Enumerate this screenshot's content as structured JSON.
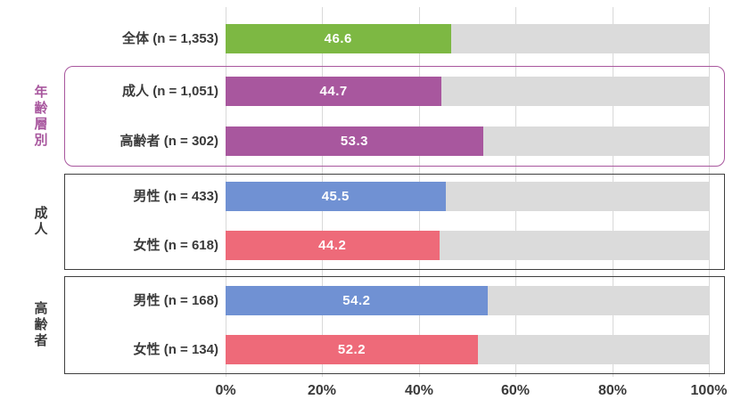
{
  "chart_data": {
    "type": "bar",
    "orientation": "horizontal",
    "title": "",
    "xlabel": "",
    "ylabel": "",
    "unit": "%",
    "xlim": [
      0,
      100
    ],
    "grid": true,
    "track_color": "#dbdbdb",
    "x_ticks": [
      "0%",
      "20%",
      "40%",
      "60%",
      "80%",
      "100%"
    ],
    "rows": [
      {
        "label": "全体 (n = 1,353)",
        "value": 46.6,
        "value_label": "46.6",
        "color": "#7db843"
      },
      {
        "label": "成人 (n = 1,051)",
        "value": 44.7,
        "value_label": "44.7",
        "color": "#a8579e"
      },
      {
        "label": "高齢者 (n = 302)",
        "value": 53.3,
        "value_label": "53.3",
        "color": "#a8579e"
      },
      {
        "label": "男性 (n = 433)",
        "value": 45.5,
        "value_label": "45.5",
        "color": "#7091d3"
      },
      {
        "label": "女性 (n = 618)",
        "value": 44.2,
        "value_label": "44.2",
        "color": "#ee6a79"
      },
      {
        "label": "男性 (n = 168)",
        "value": 54.2,
        "value_label": "54.2",
        "color": "#7091d3"
      },
      {
        "label": "女性 (n = 134)",
        "value": 52.2,
        "value_label": "52.2",
        "color": "#ee6a79"
      }
    ],
    "groups": [
      {
        "label": "年齢層別",
        "row_indexes": [
          1,
          2
        ],
        "border_color": "#a8579e",
        "label_color": "#a8579e",
        "rounded": true
      },
      {
        "label": "成人",
        "row_indexes": [
          3,
          4
        ],
        "border_color": "#3f3f3f",
        "label_color": "#3a3a3a",
        "rounded": false
      },
      {
        "label": "高齢者",
        "row_indexes": [
          5,
          6
        ],
        "border_color": "#3f3f3f",
        "label_color": "#3a3a3a",
        "rounded": false
      }
    ]
  }
}
